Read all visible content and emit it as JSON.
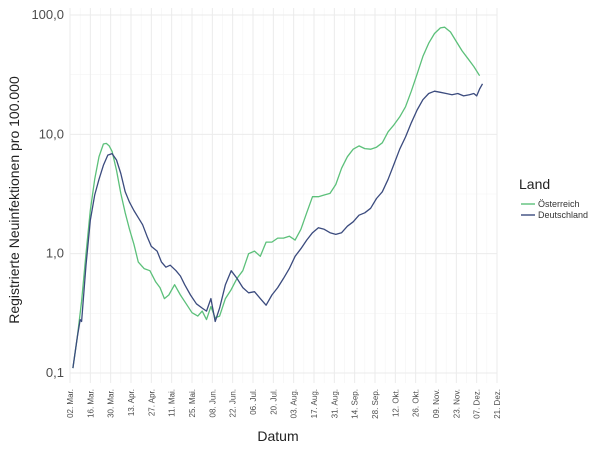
{
  "chart_data": {
    "type": "line",
    "xlabel": "Datum",
    "ylabel": "Registrierte Neuinfektionen pro 100.000",
    "y_scale": "log10",
    "ylim": [
      0.1,
      100
    ],
    "yticks": [
      {
        "value": 0.1,
        "label": "0,1"
      },
      {
        "value": 1,
        "label": "1,0"
      },
      {
        "value": 10,
        "label": "10,0"
      },
      {
        "value": 100,
        "label": "100,0"
      }
    ],
    "xlim": [
      "2020-03-02",
      "2020-12-21"
    ],
    "xticks": [
      {
        "date": "2020-03-02",
        "label": "02. Mar."
      },
      {
        "date": "2020-03-16",
        "label": "16. Mar."
      },
      {
        "date": "2020-03-30",
        "label": "30. Mar."
      },
      {
        "date": "2020-04-13",
        "label": "13. Apr."
      },
      {
        "date": "2020-04-27",
        "label": "27. Apr."
      },
      {
        "date": "2020-05-11",
        "label": "11. Mai."
      },
      {
        "date": "2020-05-25",
        "label": "25. Mai."
      },
      {
        "date": "2020-06-08",
        "label": "08. Jun."
      },
      {
        "date": "2020-06-22",
        "label": "22. Jun."
      },
      {
        "date": "2020-07-06",
        "label": "06. Jul."
      },
      {
        "date": "2020-07-20",
        "label": "20. Jul."
      },
      {
        "date": "2020-08-03",
        "label": "03. Aug."
      },
      {
        "date": "2020-08-17",
        "label": "17. Aug."
      },
      {
        "date": "2020-08-31",
        "label": "31. Aug."
      },
      {
        "date": "2020-09-14",
        "label": "14. Sep."
      },
      {
        "date": "2020-09-28",
        "label": "28. Sep."
      },
      {
        "date": "2020-10-12",
        "label": "12. Okt."
      },
      {
        "date": "2020-10-26",
        "label": "26. Okt."
      },
      {
        "date": "2020-11-09",
        "label": "09. Nov."
      },
      {
        "date": "2020-11-23",
        "label": "23. Nov."
      },
      {
        "date": "2020-12-07",
        "label": "07. Dez."
      },
      {
        "date": "2020-12-21",
        "label": "21. Dez."
      }
    ],
    "grid": true,
    "legend": {
      "title": "Land",
      "position": "right"
    },
    "series": [
      {
        "name": "Österreich",
        "color": "#5cc07a",
        "points": [
          [
            "2020-03-04",
            0.11
          ],
          [
            "2020-03-07",
            0.2
          ],
          [
            "2020-03-10",
            0.4
          ],
          [
            "2020-03-13",
            1.0
          ],
          [
            "2020-03-16",
            2.3
          ],
          [
            "2020-03-19",
            4.2
          ],
          [
            "2020-03-22",
            6.5
          ],
          [
            "2020-03-25",
            8.3
          ],
          [
            "2020-03-27",
            8.4
          ],
          [
            "2020-03-29",
            8.0
          ],
          [
            "2020-03-31",
            7.2
          ],
          [
            "2020-04-03",
            5.0
          ],
          [
            "2020-04-06",
            3.2
          ],
          [
            "2020-04-09",
            2.2
          ],
          [
            "2020-04-12",
            1.6
          ],
          [
            "2020-04-15",
            1.2
          ],
          [
            "2020-04-18",
            0.85
          ],
          [
            "2020-04-22",
            0.75
          ],
          [
            "2020-04-26",
            0.72
          ],
          [
            "2020-04-30",
            0.58
          ],
          [
            "2020-05-03",
            0.52
          ],
          [
            "2020-05-06",
            0.42
          ],
          [
            "2020-05-09",
            0.45
          ],
          [
            "2020-05-13",
            0.55
          ],
          [
            "2020-05-17",
            0.45
          ],
          [
            "2020-05-21",
            0.38
          ],
          [
            "2020-05-25",
            0.32
          ],
          [
            "2020-05-29",
            0.3
          ],
          [
            "2020-06-01",
            0.33
          ],
          [
            "2020-06-04",
            0.28
          ],
          [
            "2020-06-07",
            0.36
          ],
          [
            "2020-06-10",
            0.29
          ],
          [
            "2020-06-13",
            0.3
          ],
          [
            "2020-06-17",
            0.42
          ],
          [
            "2020-06-21",
            0.5
          ],
          [
            "2020-06-25",
            0.62
          ],
          [
            "2020-06-29",
            0.72
          ],
          [
            "2020-07-03",
            1.0
          ],
          [
            "2020-07-07",
            1.05
          ],
          [
            "2020-07-11",
            0.95
          ],
          [
            "2020-07-15",
            1.25
          ],
          [
            "2020-07-19",
            1.25
          ],
          [
            "2020-07-23",
            1.35
          ],
          [
            "2020-07-27",
            1.35
          ],
          [
            "2020-07-31",
            1.4
          ],
          [
            "2020-08-04",
            1.3
          ],
          [
            "2020-08-08",
            1.6
          ],
          [
            "2020-08-12",
            2.2
          ],
          [
            "2020-08-16",
            3.0
          ],
          [
            "2020-08-20",
            3.0
          ],
          [
            "2020-08-24",
            3.1
          ],
          [
            "2020-08-28",
            3.2
          ],
          [
            "2020-09-01",
            3.8
          ],
          [
            "2020-09-05",
            5.2
          ],
          [
            "2020-09-09",
            6.5
          ],
          [
            "2020-09-13",
            7.5
          ],
          [
            "2020-09-17",
            8.0
          ],
          [
            "2020-09-21",
            7.6
          ],
          [
            "2020-09-25",
            7.5
          ],
          [
            "2020-09-29",
            7.8
          ],
          [
            "2020-10-03",
            8.5
          ],
          [
            "2020-10-07",
            10.5
          ],
          [
            "2020-10-11",
            12.0
          ],
          [
            "2020-10-15",
            14.0
          ],
          [
            "2020-10-19",
            17.0
          ],
          [
            "2020-10-23",
            23.0
          ],
          [
            "2020-10-27",
            32.0
          ],
          [
            "2020-10-31",
            45.0
          ],
          [
            "2020-11-04",
            58.0
          ],
          [
            "2020-11-08",
            70.0
          ],
          [
            "2020-11-12",
            78.0
          ],
          [
            "2020-11-15",
            79.0
          ],
          [
            "2020-11-19",
            72.0
          ],
          [
            "2020-11-23",
            60.0
          ],
          [
            "2020-11-27",
            50.0
          ],
          [
            "2020-12-01",
            43.0
          ],
          [
            "2020-12-05",
            37.0
          ],
          [
            "2020-12-09",
            31.0
          ]
        ]
      },
      {
        "name": "Deutschland",
        "color": "#3b4b7e",
        "points": [
          [
            "2020-03-04",
            0.11
          ],
          [
            "2020-03-07",
            0.2
          ],
          [
            "2020-03-09",
            0.28
          ],
          [
            "2020-03-10",
            0.27
          ],
          [
            "2020-03-13",
            0.8
          ],
          [
            "2020-03-16",
            1.9
          ],
          [
            "2020-03-19",
            3.1
          ],
          [
            "2020-03-22",
            4.2
          ],
          [
            "2020-03-25",
            5.5
          ],
          [
            "2020-03-28",
            6.7
          ],
          [
            "2020-03-31",
            6.9
          ],
          [
            "2020-04-03",
            6.1
          ],
          [
            "2020-04-06",
            4.7
          ],
          [
            "2020-04-09",
            3.3
          ],
          [
            "2020-04-12",
            2.7
          ],
          [
            "2020-04-15",
            2.3
          ],
          [
            "2020-04-18",
            2.0
          ],
          [
            "2020-04-21",
            1.75
          ],
          [
            "2020-04-24",
            1.4
          ],
          [
            "2020-04-27",
            1.15
          ],
          [
            "2020-05-01",
            1.05
          ],
          [
            "2020-05-04",
            0.85
          ],
          [
            "2020-05-07",
            0.77
          ],
          [
            "2020-05-10",
            0.8
          ],
          [
            "2020-05-14",
            0.72
          ],
          [
            "2020-05-17",
            0.65
          ],
          [
            "2020-05-20",
            0.55
          ],
          [
            "2020-05-24",
            0.45
          ],
          [
            "2020-05-28",
            0.38
          ],
          [
            "2020-06-01",
            0.35
          ],
          [
            "2020-06-04",
            0.33
          ],
          [
            "2020-06-07",
            0.42
          ],
          [
            "2020-06-10",
            0.27
          ],
          [
            "2020-06-13",
            0.35
          ],
          [
            "2020-06-17",
            0.55
          ],
          [
            "2020-06-21",
            0.72
          ],
          [
            "2020-06-25",
            0.62
          ],
          [
            "2020-06-29",
            0.52
          ],
          [
            "2020-07-03",
            0.47
          ],
          [
            "2020-07-07",
            0.48
          ],
          [
            "2020-07-11",
            0.42
          ],
          [
            "2020-07-15",
            0.37
          ],
          [
            "2020-07-19",
            0.45
          ],
          [
            "2020-07-23",
            0.52
          ],
          [
            "2020-07-27",
            0.62
          ],
          [
            "2020-07-31",
            0.75
          ],
          [
            "2020-08-04",
            0.95
          ],
          [
            "2020-08-08",
            1.1
          ],
          [
            "2020-08-12",
            1.3
          ],
          [
            "2020-08-16",
            1.5
          ],
          [
            "2020-08-20",
            1.65
          ],
          [
            "2020-08-24",
            1.6
          ],
          [
            "2020-08-28",
            1.5
          ],
          [
            "2020-09-01",
            1.45
          ],
          [
            "2020-09-05",
            1.5
          ],
          [
            "2020-09-09",
            1.7
          ],
          [
            "2020-09-13",
            1.85
          ],
          [
            "2020-09-17",
            2.1
          ],
          [
            "2020-09-21",
            2.2
          ],
          [
            "2020-09-25",
            2.4
          ],
          [
            "2020-09-29",
            2.9
          ],
          [
            "2020-10-03",
            3.3
          ],
          [
            "2020-10-07",
            4.2
          ],
          [
            "2020-10-11",
            5.6
          ],
          [
            "2020-10-15",
            7.5
          ],
          [
            "2020-10-19",
            9.5
          ],
          [
            "2020-10-23",
            12.5
          ],
          [
            "2020-10-27",
            16.0
          ],
          [
            "2020-10-31",
            19.5
          ],
          [
            "2020-11-04",
            22.0
          ],
          [
            "2020-11-08",
            23.0
          ],
          [
            "2020-11-12",
            22.5
          ],
          [
            "2020-11-16",
            22.0
          ],
          [
            "2020-11-20",
            21.5
          ],
          [
            "2020-11-24",
            22.0
          ],
          [
            "2020-11-28",
            21.0
          ],
          [
            "2020-12-02",
            21.5
          ],
          [
            "2020-12-05",
            22.0
          ],
          [
            "2020-12-07",
            21.0
          ],
          [
            "2020-12-09",
            24.0
          ],
          [
            "2020-12-11",
            26.5
          ]
        ]
      }
    ]
  }
}
